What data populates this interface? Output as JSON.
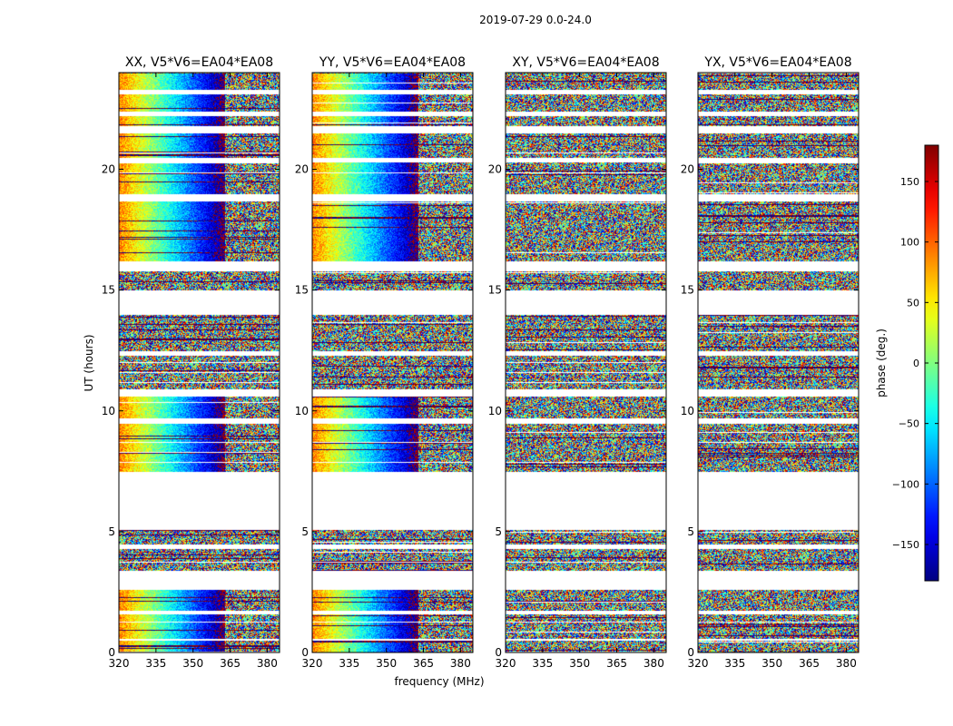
{
  "chart_data": {
    "type": "heatmap",
    "suptitle": "2019-07-29 0.0-24.0",
    "xlabel": "frequency (MHz)",
    "ylabel": "UT (hours)",
    "xlim": [
      320,
      385
    ],
    "ylim": [
      0,
      24
    ],
    "xticks": [
      320,
      335,
      350,
      365,
      380
    ],
    "yticks": [
      0,
      5,
      10,
      15,
      20
    ],
    "panels": [
      {
        "title": "XX, V5*V6=EA04*EA08",
        "mode": "gradient"
      },
      {
        "title": "YY, V5*V6=EA04*EA08",
        "mode": "gradient"
      },
      {
        "title": "XY, V5*V6=EA04*EA08",
        "mode": "noise"
      },
      {
        "title": "YX, V5*V6=EA04*EA08",
        "mode": "noise"
      }
    ],
    "data_spans_hours": [
      [
        0.0,
        0.5
      ],
      [
        0.6,
        1.6
      ],
      [
        1.75,
        2.6
      ],
      [
        3.4,
        4.3
      ],
      [
        4.5,
        5.1
      ],
      [
        7.5,
        9.5
      ],
      [
        9.7,
        10.6
      ],
      [
        10.9,
        12.3
      ],
      [
        12.5,
        14.0
      ],
      [
        15.0,
        15.8
      ],
      [
        16.2,
        18.7
      ],
      [
        19.0,
        20.3
      ],
      [
        20.5,
        21.5
      ],
      [
        21.8,
        22.2
      ],
      [
        22.4,
        23.1
      ],
      [
        23.3,
        24.0
      ]
    ],
    "colorbar": {
      "label": "phase (deg.)",
      "range": [
        -180,
        180
      ],
      "ticks": [
        -150,
        -100,
        -50,
        0,
        50,
        100,
        150
      ],
      "tick_labels": [
        "−150",
        "−100",
        "−50",
        "0",
        "50",
        "100",
        "150"
      ],
      "colormap": "jet"
    }
  }
}
